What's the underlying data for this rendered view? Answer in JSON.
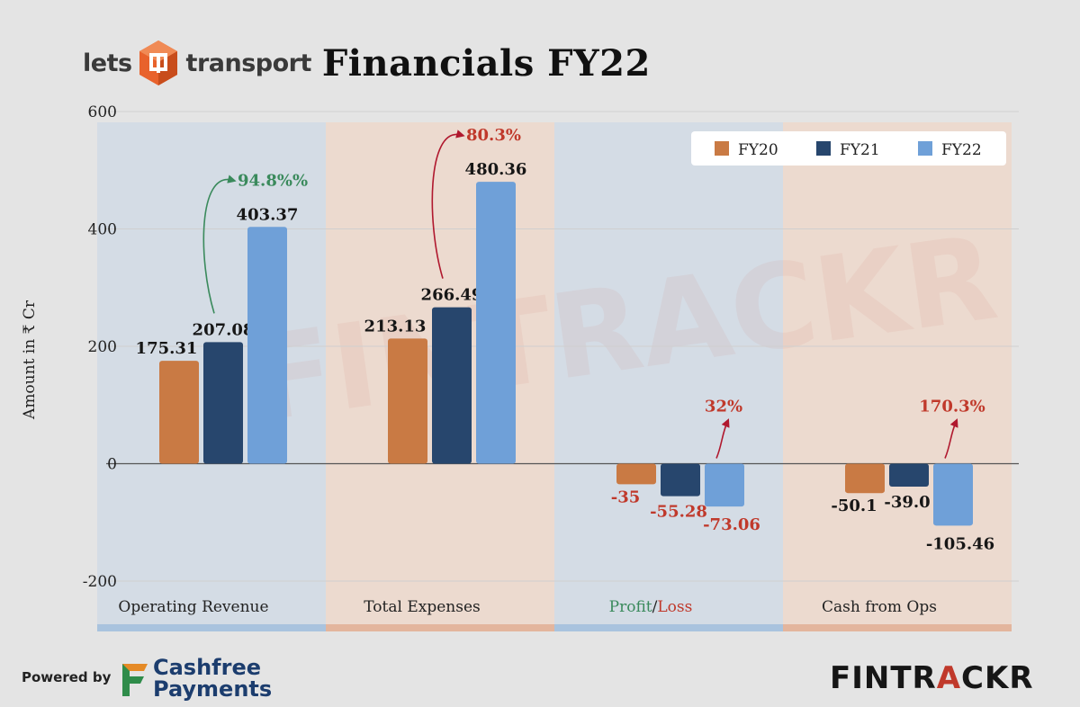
{
  "header": {
    "brand_part1": "lets",
    "brand_part2": "transport",
    "title": "Financials FY22"
  },
  "footer": {
    "powered_by": "Powered by",
    "sponsor_line1": "Cashfree",
    "sponsor_line2": "Payments",
    "watermark_brand_main": "FINTR",
    "watermark_brand_accent": "A",
    "watermark_brand_end": "CKR"
  },
  "colors": {
    "fy20": "#c97a44",
    "fy21": "#27466d",
    "fy22": "#6fa0d8",
    "growth_green": "#3a8a5c",
    "growth_red": "#c0392b",
    "panel_blue": "#cfdae6",
    "panel_peach": "#efd7c8",
    "strip_blue": "#a9c3de",
    "strip_peach": "#e3b59d"
  },
  "chart_data": {
    "type": "bar",
    "title": "Financials FY22",
    "xlabel": "",
    "ylabel": "Amount in ₹ Cr",
    "ylim": [
      -200,
      600
    ],
    "yticks": [
      "600",
      "400",
      "200",
      "0",
      "-200"
    ],
    "ytick_values": [
      600,
      400,
      200,
      0,
      -200
    ],
    "grid": true,
    "legend_position": "top-right",
    "categories": [
      "Operating Revenue",
      "Total Expenses",
      "Profit/Loss",
      "Cash from Ops"
    ],
    "category_label_parts": [
      [
        {
          "text": "Operating Revenue",
          "color": "#222222"
        }
      ],
      [
        {
          "text": "Total Expenses",
          "color": "#222222"
        }
      ],
      [
        {
          "text": "Profit",
          "color": "#3a8a5c"
        },
        {
          "text": "/",
          "color": "#222222"
        },
        {
          "text": "Loss",
          "color": "#c0392b"
        }
      ],
      [
        {
          "text": "Cash from Ops",
          "color": "#222222"
        }
      ]
    ],
    "series": [
      {
        "name": "FY20",
        "values": [
          175.31,
          213.13,
          -35,
          -50.1
        ],
        "labels": [
          "175.31",
          "213.13",
          "-35",
          "-50.1"
        ]
      },
      {
        "name": "FY21",
        "values": [
          207.08,
          266.49,
          -55.28,
          -39.0
        ],
        "labels": [
          "207.08",
          "266.49",
          "-55.28",
          "-39.0"
        ]
      },
      {
        "name": "FY22",
        "values": [
          403.37,
          480.36,
          -73.06,
          -105.46
        ],
        "labels": [
          "403.37",
          "480.36",
          "-73.06",
          "-105.46"
        ]
      }
    ],
    "growth_annotations": [
      {
        "category": "Operating Revenue",
        "text": "94.8%%",
        "color": "green"
      },
      {
        "category": "Total Expenses",
        "text": "80.3%",
        "color": "red"
      },
      {
        "category": "Profit/Loss",
        "text": "32%",
        "color": "red"
      },
      {
        "category": "Cash from Ops",
        "text": "170.3%",
        "color": "red"
      }
    ]
  }
}
